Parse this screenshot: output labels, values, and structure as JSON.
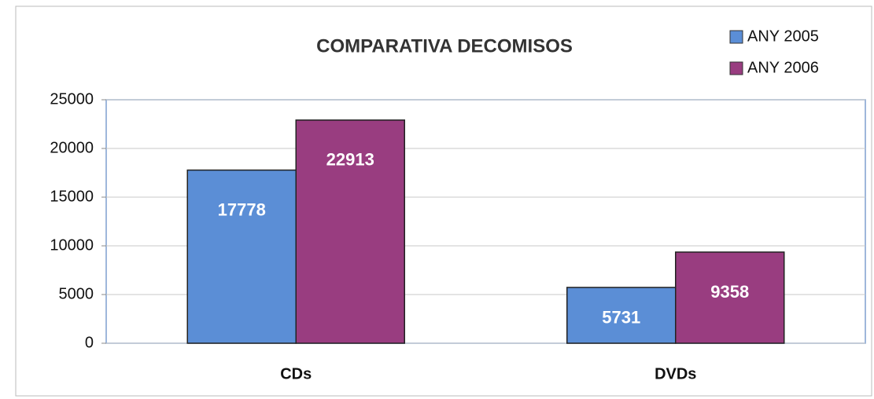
{
  "chart_data": {
    "type": "bar",
    "title": "COMPARATIVA DECOMISOS",
    "categories": [
      "CDs",
      "DVDs"
    ],
    "series": [
      {
        "name": "ANY 2005",
        "color": "#5b8ed6",
        "values": [
          17778,
          5731
        ]
      },
      {
        "name": "ANY 2006",
        "color": "#993d80",
        "values": [
          22913,
          9358
        ]
      }
    ],
    "ylim": [
      0,
      25000
    ],
    "yticks": [
      0,
      5000,
      10000,
      15000,
      20000,
      25000
    ],
    "grid": true,
    "legend": "top-right"
  }
}
